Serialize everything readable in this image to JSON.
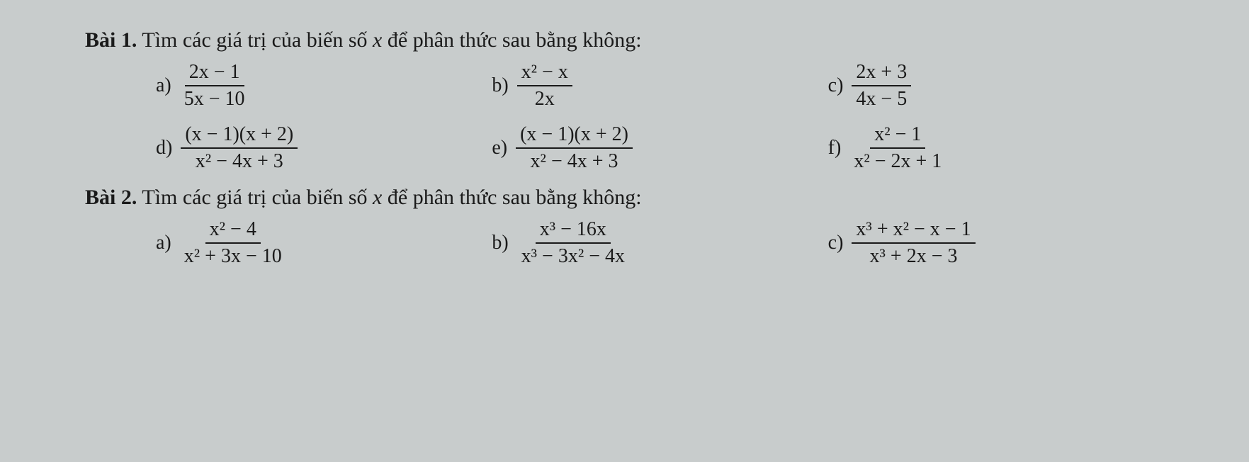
{
  "background_color": "#c8cccc",
  "text_color": "#1a1a1a",
  "font_family": "Times New Roman",
  "base_font_size": 28,
  "problems": {
    "p1": {
      "title_bold": "Bài 1.",
      "title_rest": "Tìm các giá trị của biến số",
      "title_var": "x",
      "title_end": "để phân thức sau bằng không:",
      "row1": {
        "a": {
          "label": "a)",
          "num": "2x − 1",
          "den": "5x − 10"
        },
        "b": {
          "label": "b)",
          "num": "x² − x",
          "den": "2x"
        },
        "c": {
          "label": "c)",
          "num": "2x + 3",
          "den": "4x − 5"
        }
      },
      "row2": {
        "d": {
          "label": "d)",
          "num": "(x − 1)(x + 2)",
          "den": "x² − 4x + 3"
        },
        "e": {
          "label": "e)",
          "num": "(x − 1)(x + 2)",
          "den": "x² − 4x + 3"
        },
        "f": {
          "label": "f)",
          "num": "x² − 1",
          "den": "x² − 2x + 1"
        }
      }
    },
    "p2": {
      "title_bold": "Bài 2.",
      "title_rest": "Tìm các giá trị của biến số",
      "title_var": "x",
      "title_end": "để phân thức sau bằng không:",
      "row1": {
        "a": {
          "label": "a)",
          "num": "x² − 4",
          "den": "x² + 3x − 10"
        },
        "b": {
          "label": "b)",
          "num": "x³ − 16x",
          "den": "x³ − 3x² − 4x"
        },
        "c": {
          "label": "c)",
          "num": "x³ + x² − x − 1",
          "den": "x³ + 2x − 3"
        }
      }
    }
  }
}
